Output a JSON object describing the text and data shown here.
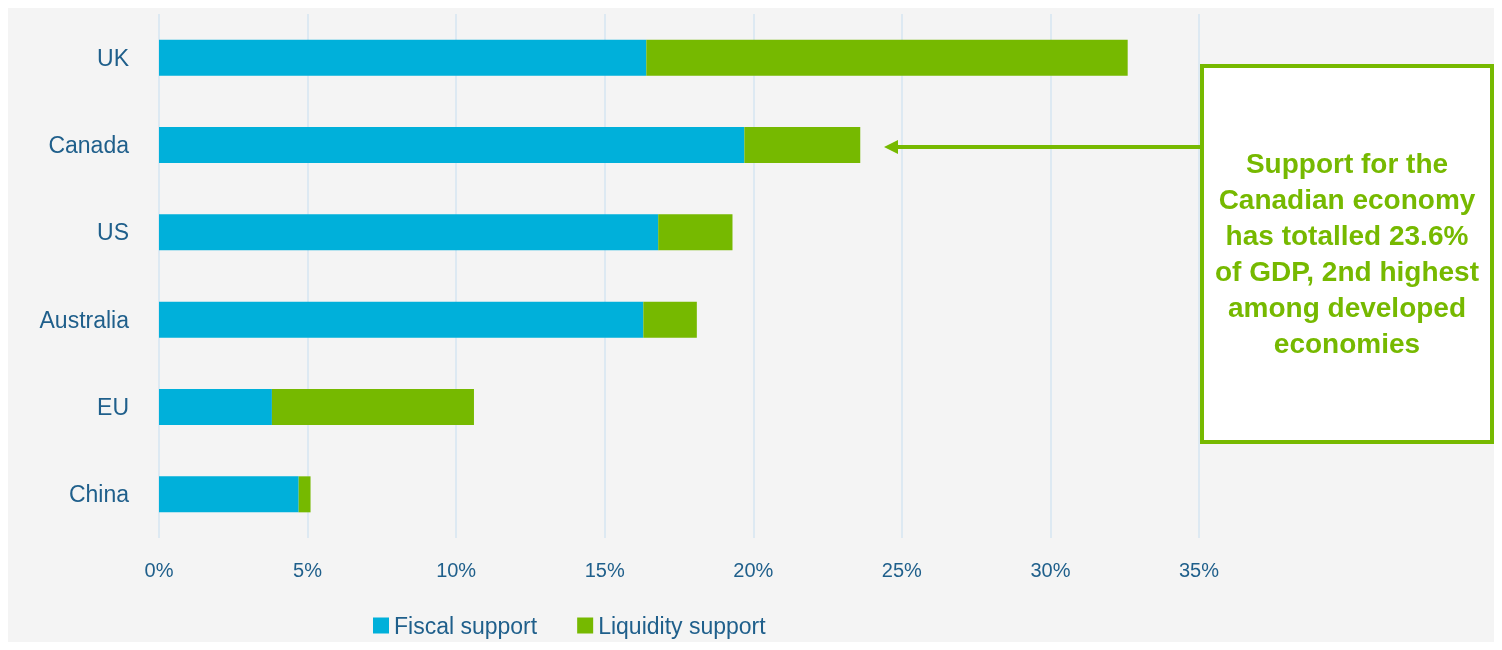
{
  "chart_data": {
    "type": "bar",
    "orientation": "horizontal",
    "stacked": true,
    "categories": [
      "UK",
      "Canada",
      "US",
      "Australia",
      "EU",
      "China"
    ],
    "series": [
      {
        "name": "Fiscal support",
        "color": "#00b0da",
        "values": [
          16.4,
          19.7,
          16.8,
          16.3,
          3.8,
          4.7
        ]
      },
      {
        "name": "Liquidity support",
        "color": "#76b900",
        "values": [
          16.2,
          3.9,
          2.5,
          1.8,
          6.8,
          0.4
        ]
      }
    ],
    "xlim": [
      0,
      35
    ],
    "xticks": [
      {
        "value": 0,
        "label": "0%"
      },
      {
        "value": 5,
        "label": "5%"
      },
      {
        "value": 10,
        "label": "10%"
      },
      {
        "value": 15,
        "label": "15%"
      },
      {
        "value": 20,
        "label": "20%"
      },
      {
        "value": 25,
        "label": "25%"
      },
      {
        "value": 30,
        "label": "30%"
      },
      {
        "value": 35,
        "label": "35%"
      }
    ],
    "grid": "x",
    "legend": "bottom",
    "annotations": [
      "Support for the Canadian economy has totalled 23.6% of GDP, 2nd highest among developed economies"
    ]
  }
}
